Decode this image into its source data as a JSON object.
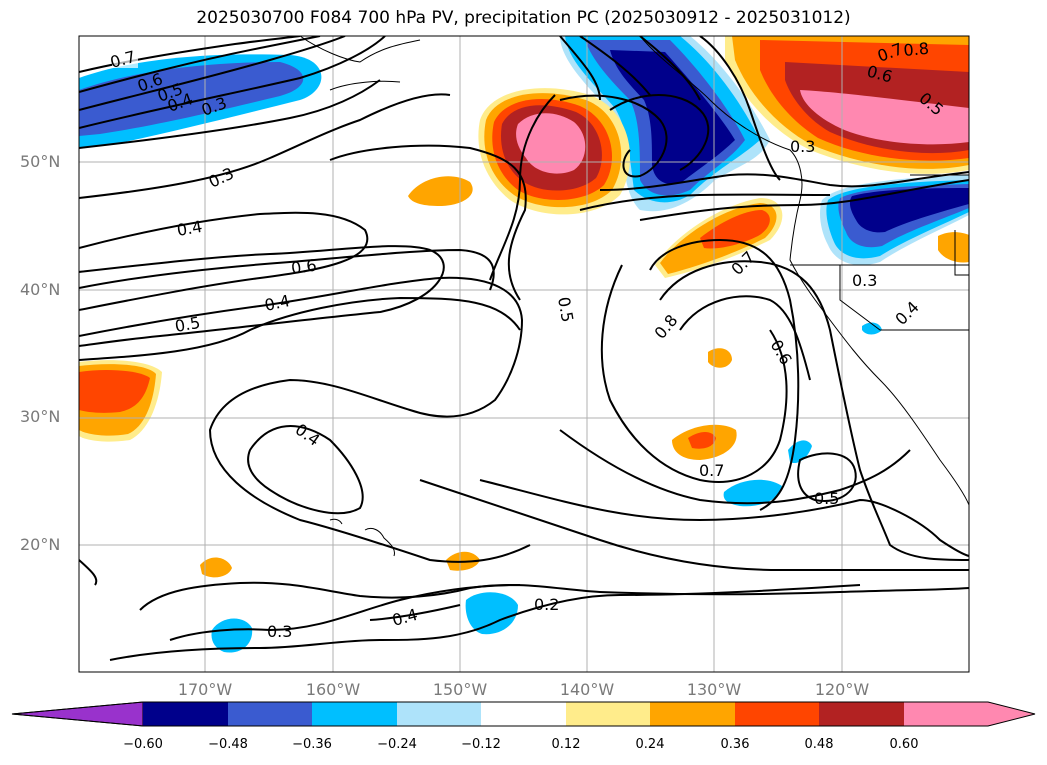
{
  "title": "2025030700 F084 700 hPa PV, precipitation PC (2025030912 - 2025031012)",
  "map": {
    "lat_ticks": [
      "50°N",
      "40°N",
      "30°N",
      "20°N"
    ],
    "lon_ticks": [
      "170°W",
      "160°W",
      "150°W",
      "140°W",
      "130°W",
      "120°W"
    ],
    "contour_labels": [
      "0.7",
      "0.6",
      "0.5",
      "0.4",
      "0.3",
      "0.3",
      "0.4",
      "0.6",
      "0.4",
      "0.5",
      "0.5",
      "0.8",
      "0.7",
      "0.6",
      "0.4",
      "0.7",
      "0.5",
      "0.3",
      "0.2",
      "0.3",
      "0.4",
      "0.3",
      "0.4",
      "0.7",
      "0.8",
      "0.6",
      "0.5"
    ],
    "grid": true
  },
  "colorbar": {
    "ticks": [
      "−0.60",
      "−0.48",
      "−0.36",
      "−0.24",
      "−0.12",
      "0.12",
      "0.24",
      "0.36",
      "0.48",
      "0.60"
    ],
    "colors": [
      "#9932cc",
      "#00008b",
      "#3a5bd0",
      "#00bfff",
      "#aee3fa",
      "#ffffff",
      "#ffec8b",
      "#ffa500",
      "#ff4500",
      "#b22222",
      "#ff88b0"
    ]
  }
}
